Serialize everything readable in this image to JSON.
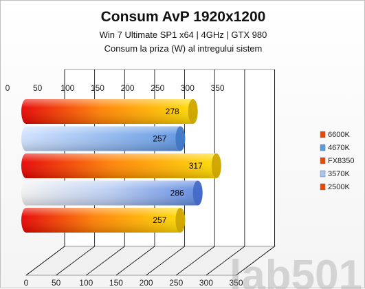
{
  "chart_data": {
    "type": "bar",
    "orientation": "horizontal",
    "title": "Consum AvP 1920x1200",
    "subtitle": "Win 7 Ultimate SP1 x64  | 4GHz | GTX 980",
    "subtitle2": "Consum la priza (W) al intregului sistem",
    "categories": [
      "6600K",
      "4670K",
      "FX8350",
      "3570K",
      "2500K"
    ],
    "values": [
      278,
      257,
      317,
      286,
      257
    ],
    "colors": [
      "#f4a000",
      "#5b9bd5",
      "#f4a000",
      "#6a97e8",
      "#f4a000"
    ],
    "xlim": [
      0,
      350
    ],
    "xticks": [
      0,
      50,
      100,
      150,
      200,
      250,
      300,
      350
    ],
    "legend_position": "right",
    "grid": true,
    "watermark": "lab501"
  }
}
